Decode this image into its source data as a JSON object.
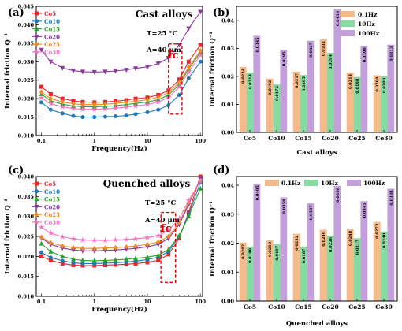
{
  "chart_data": [
    {
      "panel": "(a)",
      "type": "line",
      "title": "Cast alloys",
      "annotations": [
        "T=25 °C",
        "A=40 μm",
        "fc"
      ],
      "xlabel": "Frequency(Hz)",
      "ylabel": "Internal friction Q⁻¹",
      "x_scale": "log",
      "xlim": [
        0.08,
        110
      ],
      "ylim": [
        0.01,
        0.045
      ],
      "x_ticks": [
        0.1,
        1,
        10,
        100
      ],
      "x_tick_labels": [
        "0.1",
        "1",
        "10",
        "100"
      ],
      "y_ticks": [
        0.01,
        0.015,
        0.02,
        0.025,
        0.03,
        0.035,
        0.04,
        0.045
      ],
      "y_tick_labels": [
        "0.010",
        "0.015",
        "0.020",
        "0.025",
        "0.030",
        "0.035",
        "0.040",
        "0.045"
      ],
      "x": [
        0.1,
        0.15,
        0.25,
        0.4,
        0.6,
        1,
        1.6,
        2.5,
        4,
        6,
        10,
        16,
        25,
        40,
        60,
        100
      ],
      "series": [
        {
          "name": "Co5",
          "color": "#e8262a",
          "marker": "square",
          "values": [
            0.0232,
            0.0212,
            0.02,
            0.0194,
            0.0191,
            0.019,
            0.0191,
            0.0193,
            0.0196,
            0.02,
            0.0203,
            0.021,
            0.0222,
            0.0252,
            0.03,
            0.0345
          ]
        },
        {
          "name": "Co10",
          "color": "#1f77b4",
          "marker": "circle",
          "values": [
            0.019,
            0.017,
            0.016,
            0.0153,
            0.015,
            0.015,
            0.0151,
            0.0152,
            0.0154,
            0.0158,
            0.0163,
            0.017,
            0.0182,
            0.021,
            0.0255,
            0.03
          ]
        },
        {
          "name": "Co15",
          "color": "#2ca02c",
          "marker": "triangle-up",
          "values": [
            0.0212,
            0.0194,
            0.0185,
            0.018,
            0.0178,
            0.0178,
            0.0179,
            0.0181,
            0.0184,
            0.0187,
            0.0191,
            0.0197,
            0.021,
            0.0238,
            0.028,
            0.0325
          ]
        },
        {
          "name": "Co20",
          "color": "#8b3a9c",
          "marker": "triangle-down",
          "values": [
            0.0332,
            0.03,
            0.0283,
            0.0276,
            0.0273,
            0.0272,
            0.0273,
            0.0275,
            0.0278,
            0.0282,
            0.0286,
            0.0295,
            0.031,
            0.0345,
            0.039,
            0.0435
          ]
        },
        {
          "name": "Co25",
          "color": "#f08a24",
          "marker": "diamond",
          "values": [
            0.0218,
            0.02,
            0.0191,
            0.0186,
            0.0184,
            0.0184,
            0.0185,
            0.0187,
            0.019,
            0.0193,
            0.0197,
            0.0204,
            0.0216,
            0.0244,
            0.0285,
            0.033
          ]
        },
        {
          "name": "Co30",
          "color": "#f472c4",
          "marker": "star",
          "values": [
            0.0202,
            0.0186,
            0.0178,
            0.0173,
            0.0171,
            0.0171,
            0.0172,
            0.0174,
            0.0177,
            0.018,
            0.0184,
            0.0191,
            0.0203,
            0.0232,
            0.0272,
            0.0318
          ]
        }
      ]
    },
    {
      "panel": "(b)",
      "type": "bar",
      "xlabel": "Cast alloys",
      "ylabel": "Internal friction Q⁻¹",
      "ylim": [
        0.0,
        0.045
      ],
      "y_ticks": [
        0.0,
        0.01,
        0.02,
        0.03,
        0.04
      ],
      "y_tick_labels": [
        "0.00",
        "0.01",
        "0.02",
        "0.03",
        "0.04"
      ],
      "categories": [
        "Co5",
        "Co10",
        "Co15",
        "Co20",
        "Co25",
        "Co30"
      ],
      "series": [
        {
          "name": "0.1Hz",
          "color": "#f6b98a",
          "values": [
            0.0234,
            0.0192,
            0.0217,
            0.0332,
            0.0214,
            0.0204
          ],
          "labels": [
            "0.0234",
            "0.0192",
            "0.0217",
            "0.0332",
            "0.0214",
            "0.0204"
          ]
        },
        {
          "name": "10Hz",
          "color": "#86dca0",
          "values": [
            0.0214,
            0.0172,
            0.0205,
            0.0284,
            0.0198,
            0.02
          ],
          "labels": [
            "0.0214",
            "0.0172",
            "0.0205",
            "0.0284",
            "0.0198",
            "0.0200"
          ]
        },
        {
          "name": "100Hz",
          "color": "#c39fdc",
          "values": [
            0.0345,
            0.0295,
            0.0327,
            0.0439,
            0.0309,
            0.0313
          ],
          "labels": [
            "0.0345",
            "0.0295",
            "0.0327",
            "0.0439",
            "0.0309",
            "0.0313"
          ]
        }
      ]
    },
    {
      "panel": "(c)",
      "type": "line",
      "title": "Quenched alloys",
      "annotations": [
        "T=25 °C",
        "A=40 μm",
        "fc"
      ],
      "xlabel": "Frequency(Hz)",
      "ylabel": "Internal friction Q⁻¹",
      "x_scale": "log",
      "xlim": [
        0.08,
        110
      ],
      "ylim": [
        0.01,
        0.04
      ],
      "x_ticks": [
        0.1,
        1,
        10,
        100
      ],
      "x_tick_labels": [
        "0.1",
        "1",
        "10",
        "100"
      ],
      "y_ticks": [
        0.01,
        0.015,
        0.02,
        0.025,
        0.03,
        0.035,
        0.04
      ],
      "y_tick_labels": [
        "0.010",
        "0.015",
        "0.020",
        "0.025",
        "0.030",
        "0.035",
        "0.040"
      ],
      "x": [
        0.1,
        0.15,
        0.25,
        0.4,
        0.6,
        1,
        1.6,
        2.5,
        4,
        6,
        10,
        16,
        25,
        40,
        60,
        100
      ],
      "series": [
        {
          "name": "Co5",
          "color": "#e8262a",
          "marker": "square",
          "values": [
            0.02,
            0.019,
            0.0182,
            0.0178,
            0.0177,
            0.0177,
            0.0178,
            0.0179,
            0.018,
            0.0182,
            0.0185,
            0.019,
            0.0205,
            0.0245,
            0.031,
            0.04
          ]
        },
        {
          "name": "Co10",
          "color": "#1f77b4",
          "marker": "circle",
          "values": [
            0.021,
            0.0197,
            0.0189,
            0.0184,
            0.0182,
            0.0182,
            0.0183,
            0.0184,
            0.0186,
            0.0188,
            0.0192,
            0.0198,
            0.0212,
            0.025,
            0.0305,
            0.0385
          ]
        },
        {
          "name": "Co15",
          "color": "#2ca02c",
          "marker": "triangle-up",
          "values": [
            0.0232,
            0.0212,
            0.02,
            0.0193,
            0.019,
            0.0189,
            0.019,
            0.0191,
            0.0193,
            0.0195,
            0.0198,
            0.0203,
            0.0217,
            0.0252,
            0.03,
            0.037
          ]
        },
        {
          "name": "Co20",
          "color": "#8b3a9c",
          "marker": "triangle-down",
          "values": [
            0.0246,
            0.023,
            0.0221,
            0.0216,
            0.0214,
            0.0214,
            0.0215,
            0.0216,
            0.0218,
            0.022,
            0.0224,
            0.023,
            0.0245,
            0.028,
            0.033,
            0.0395
          ]
        },
        {
          "name": "Co25",
          "color": "#f08a24",
          "marker": "diamond",
          "values": [
            0.0248,
            0.0234,
            0.0226,
            0.0222,
            0.022,
            0.022,
            0.0221,
            0.0222,
            0.0224,
            0.0226,
            0.023,
            0.0236,
            0.025,
            0.0285,
            0.0335,
            0.039
          ]
        },
        {
          "name": "Co30",
          "color": "#f472c4",
          "marker": "star",
          "values": [
            0.0273,
            0.0258,
            0.0249,
            0.0244,
            0.0241,
            0.024,
            0.024,
            0.0241,
            0.0242,
            0.0244,
            0.0247,
            0.0252,
            0.0265,
            0.0295,
            0.034,
            0.0388
          ]
        }
      ]
    },
    {
      "panel": "(d)",
      "type": "bar",
      "xlabel": "Quenched alloys",
      "ylabel": "Internal friction Q⁻¹",
      "ylim": [
        0.0,
        0.043
      ],
      "y_ticks": [
        0.0,
        0.01,
        0.02,
        0.03,
        0.04
      ],
      "y_tick_labels": [
        "0.00",
        "0.01",
        "0.02",
        "0.03",
        "0.04"
      ],
      "categories": [
        "Co5",
        "Co10",
        "Co15",
        "Co20",
        "Co25",
        "Co30"
      ],
      "series": [
        {
          "name": "0.1Hz",
          "color": "#f6b98a",
          "values": [
            0.0202,
            0.021,
            0.0232,
            0.0246,
            0.0248,
            0.0273
          ],
          "labels": [
            "0.0202",
            "0.0210",
            "0.0232",
            "0.0246",
            "0.0248",
            "0.0273"
          ]
        },
        {
          "name": "10Hz",
          "color": "#86dca0",
          "values": [
            0.0188,
            0.0197,
            0.0187,
            0.0226,
            0.0217,
            0.024
          ],
          "labels": [
            "0.0188",
            "0.0197",
            "0.0187",
            "0.0226",
            "0.0217",
            "0.0240"
          ]
        },
        {
          "name": "100Hz",
          "color": "#c39fdc",
          "values": [
            0.0405,
            0.0358,
            0.0337,
            0.0398,
            0.0345,
            0.0388
          ],
          "labels": [
            "0.0405",
            "0.0358",
            "0.0337",
            "0.0398",
            "0.0345",
            "0.0388"
          ]
        }
      ]
    }
  ]
}
